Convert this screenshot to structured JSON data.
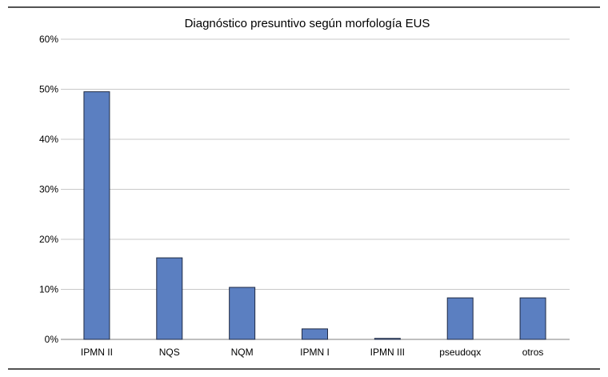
{
  "chart_data": {
    "type": "bar",
    "title": "Diagnóstico presuntivo según morfología EUS",
    "categories": [
      "IPMN II",
      "NQS",
      "NQM",
      "IPMN I",
      "IPMN III",
      "pseudoqx",
      "otros"
    ],
    "values": [
      49.5,
      16.3,
      10.4,
      2.1,
      0.2,
      8.3,
      8.3
    ],
    "y_ticks": [
      "0%",
      "10%",
      "20%",
      "30%",
      "40%",
      "50%",
      "60%"
    ],
    "ylim": [
      0,
      60
    ],
    "xlabel": "",
    "ylabel": "",
    "grid": true,
    "bar_color": "#5b7fc1"
  }
}
